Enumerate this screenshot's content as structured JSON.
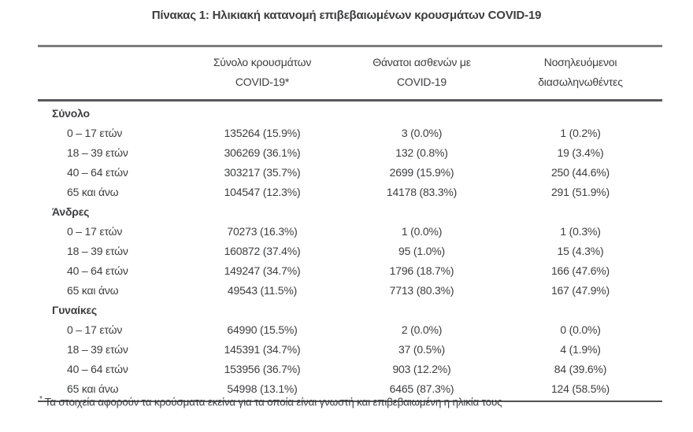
{
  "title": "Πίνακας 1: Ηλικιακή κατανομή επιβεβαιωμένων κρουσμάτων COVID-19",
  "table": {
    "columns": [
      {
        "line1": "Σύνολο κρουσμάτων",
        "line2": "COVID-19*"
      },
      {
        "line1": "Θάνατοι ασθενών με",
        "line2": "COVID-19"
      },
      {
        "line1": "Νοσηλευόμενοι",
        "line2": "διασωληνωθέντες"
      }
    ],
    "sections": [
      {
        "label": "Σύνολο",
        "rows": [
          {
            "age": "0 – 17 ετών",
            "cases": "135264 (15.9%)",
            "deaths": "3 (0.0%)",
            "intubated": "1 (0.2%)"
          },
          {
            "age": "18 – 39 ετών",
            "cases": "306269 (36.1%)",
            "deaths": "132 (0.8%)",
            "intubated": "19 (3.4%)"
          },
          {
            "age": "40 – 64 ετών",
            "cases": "303217 (35.7%)",
            "deaths": "2699 (15.9%)",
            "intubated": "250 (44.6%)"
          },
          {
            "age": "65 και άνω",
            "cases": "104547 (12.3%)",
            "deaths": "14178 (83.3%)",
            "intubated": "291 (51.9%)"
          }
        ]
      },
      {
        "label": "Άνδρες",
        "rows": [
          {
            "age": "0 – 17 ετών",
            "cases": "70273 (16.3%)",
            "deaths": "1 (0.0%)",
            "intubated": "1 (0.3%)"
          },
          {
            "age": "18 – 39 ετών",
            "cases": "160872 (37.4%)",
            "deaths": "95 (1.0%)",
            "intubated": "15 (4.3%)"
          },
          {
            "age": "40 – 64 ετών",
            "cases": "149247 (34.7%)",
            "deaths": "1796 (18.7%)",
            "intubated": "166 (47.6%)"
          },
          {
            "age": "65 και άνω",
            "cases": "49543 (11.5%)",
            "deaths": "7713 (80.3%)",
            "intubated": "167 (47.9%)"
          }
        ]
      },
      {
        "label": "Γυναίκες",
        "rows": [
          {
            "age": "0 – 17 ετών",
            "cases": "64990 (15.5%)",
            "deaths": "2 (0.0%)",
            "intubated": "0 (0.0%)"
          },
          {
            "age": "18 – 39 ετών",
            "cases": "145391 (34.7%)",
            "deaths": "37 (0.5%)",
            "intubated": "4 (1.9%)"
          },
          {
            "age": "40 – 64 ετών",
            "cases": "153956 (36.7%)",
            "deaths": "903 (12.2%)",
            "intubated": "84 (39.6%)"
          },
          {
            "age": "65 και άνω",
            "cases": "54998 (13.1%)",
            "deaths": "6465 (87.3%)",
            "intubated": "124 (58.5%)"
          }
        ]
      }
    ]
  },
  "footnote": {
    "marker": "*",
    "text": "Τα στοιχεία αφορούν τα κρούσματα εκείνα για τα οποία είναι γνωστή και επιβεβαιωμένη η ηλικία τους"
  },
  "colors": {
    "text": "#3d3e40",
    "border_top": "#7c7d7f",
    "border_header": "#58595b",
    "border_bottom": "#515254"
  }
}
